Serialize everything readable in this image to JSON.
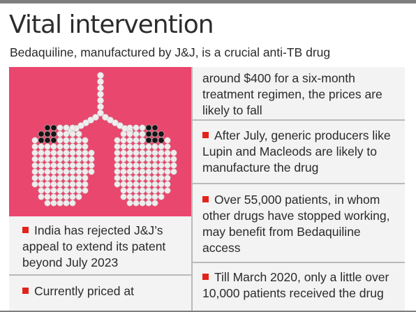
{
  "header": {
    "title": "Vital intervention",
    "subtitle": "Bedaquiline, manufactured by J&J, is a crucial anti-TB drug"
  },
  "left_column": {
    "illustration": {
      "name": "lungs-made-of-pills-icon",
      "background": "#e9476d",
      "pill_color": "#eeeeee",
      "dark_pill_color": "#151515"
    },
    "blocks": [
      {
        "id": "patent",
        "bullet": true,
        "lines": [
          "India has rejected J&J’s",
          "appeal to extend its patent",
          "beyond July 2023"
        ]
      },
      {
        "id": "price-start",
        "bullet": true,
        "lines": [
          "Currently priced at"
        ]
      }
    ]
  },
  "right_column": {
    "blocks": [
      {
        "id": "price-cont",
        "bullet": false,
        "lines": [
          "around $400 for a six-month",
          "treatment regimen, the prices are",
          "likely to fall"
        ]
      },
      {
        "id": "generics",
        "bullet": true,
        "lines": [
          "After July, generic producers like",
          "Lupin and Macleods are likely to",
          "manufacture the drug"
        ]
      },
      {
        "id": "patients",
        "bullet": true,
        "lines": [
          "Over 55,000 patients, in whom",
          "other drugs have stopped working,",
          "may benefit from Bedaquiline",
          "access"
        ]
      },
      {
        "id": "received",
        "bullet": true,
        "lines": [
          "Till March 2020, only a little over",
          "10,000 patients received the drug"
        ]
      }
    ]
  },
  "colors": {
    "bullet": "#e2231a",
    "panel": "#f3f3f3",
    "divider": "#b9b9b9"
  }
}
